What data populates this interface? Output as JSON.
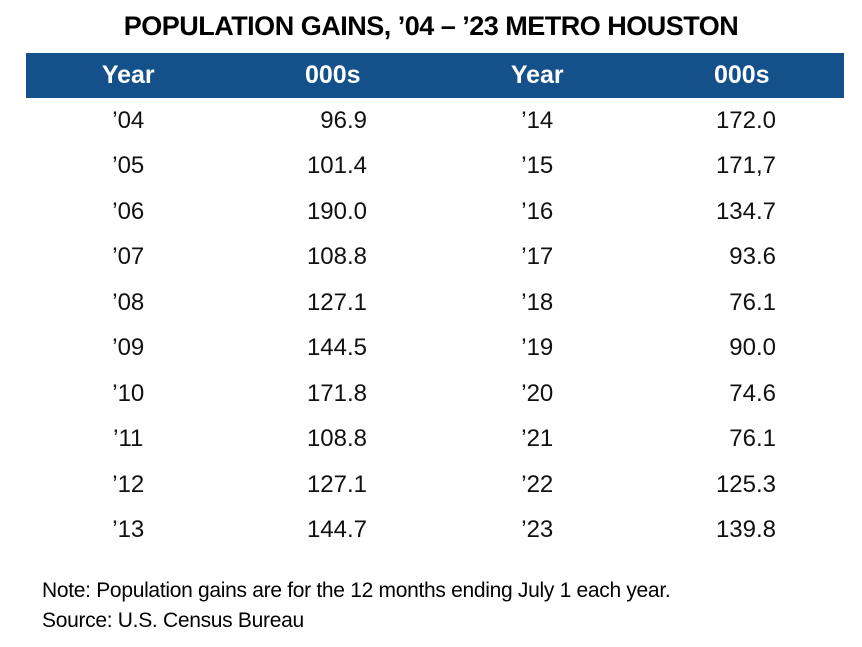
{
  "title": "POPULATION GAINS, ’04 – ’23 METRO HOUSTON",
  "colors": {
    "header_bg": "#14508A",
    "header_text": "#FFFFFF",
    "body_text": "#111111"
  },
  "table": {
    "headers": [
      "Year",
      "000s",
      "Year",
      "000s"
    ],
    "rows": [
      {
        "year_left": "’04",
        "gain_left": "96.9",
        "year_right": "’14",
        "gain_right": "172.0"
      },
      {
        "year_left": "’05",
        "gain_left": "101.4",
        "year_right": "’15",
        "gain_right": "171,7"
      },
      {
        "year_left": "’06",
        "gain_left": "190.0",
        "year_right": "’16",
        "gain_right": "134.7"
      },
      {
        "year_left": "’07",
        "gain_left": "108.8",
        "year_right": "’17",
        "gain_right": "93.6"
      },
      {
        "year_left": "’08",
        "gain_left": "127.1",
        "year_right": "’18",
        "gain_right": "76.1"
      },
      {
        "year_left": "’09",
        "gain_left": "144.5",
        "year_right": "’19",
        "gain_right": "90.0"
      },
      {
        "year_left": "’10",
        "gain_left": "171.8",
        "year_right": "’20",
        "gain_right": "74.6"
      },
      {
        "year_left": "’11",
        "gain_left": "108.8",
        "year_right": "’21",
        "gain_right": "76.1"
      },
      {
        "year_left": "’12",
        "gain_left": "127.1",
        "year_right": "’22",
        "gain_right": "125.3"
      },
      {
        "year_left": "’13",
        "gain_left": "144.7",
        "year_right": "’23",
        "gain_right": "139.8"
      }
    ]
  },
  "notes": {
    "note": "Note: Population gains are for the 12 months ending July 1 each year.",
    "source": "Source: U.S. Census Bureau"
  },
  "chart_data": {
    "type": "table",
    "title": "POPULATION GAINS, ’04 – ’23 METRO HOUSTON",
    "columns": [
      "Year",
      "000s",
      "Year",
      "000s"
    ],
    "categories": [
      "'04",
      "'05",
      "'06",
      "'07",
      "'08",
      "'09",
      "'10",
      "'11",
      "'12",
      "'13",
      "'14",
      "'15",
      "'16",
      "'17",
      "'18",
      "'19",
      "'20",
      "'21",
      "'22",
      "'23"
    ],
    "values": [
      96.9,
      101.4,
      190.0,
      108.8,
      127.1,
      144.5,
      171.8,
      108.8,
      127.1,
      144.7,
      172.0,
      171.7,
      134.7,
      93.6,
      76.1,
      90.0,
      74.6,
      76.1,
      125.3,
      139.8
    ],
    "value_display_note": "'15 value printed as 171,7 (comma) in source image",
    "units": "thousands of people",
    "note": "Note: Population gains are for the 12 months ending July 1 each year.",
    "source": "Source: U.S. Census Bureau"
  }
}
